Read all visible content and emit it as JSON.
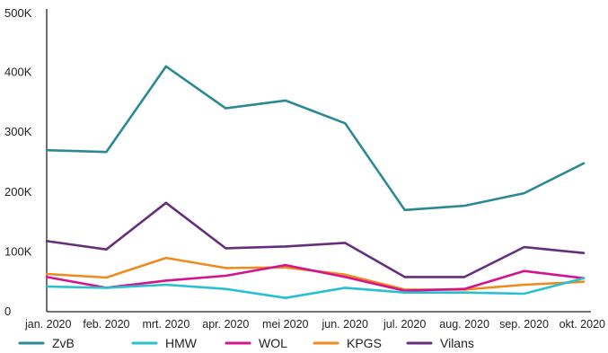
{
  "chart_data": {
    "type": "line",
    "title": "",
    "xlabel": "",
    "ylabel": "",
    "categories": [
      "jan. 2020",
      "feb. 2020",
      "mrt. 2020",
      "apr. 2020",
      "mei 2020",
      "jun. 2020",
      "jul. 2020",
      "aug. 2020",
      "sep. 2020",
      "okt. 2020"
    ],
    "ylim": [
      0,
      500000
    ],
    "y_ticks": [
      {
        "value": 0,
        "label": "0"
      },
      {
        "value": 100000,
        "label": "100K"
      },
      {
        "value": 200000,
        "label": "200K"
      },
      {
        "value": 300000,
        "label": "300K"
      },
      {
        "value": 400000,
        "label": "400K"
      },
      {
        "value": 500000,
        "label": "500K"
      }
    ],
    "grid": false,
    "legend_position": "bottom",
    "series": [
      {
        "name": "ZvB",
        "color": "#2a8a93",
        "values": [
          270000,
          267000,
          410000,
          340000,
          353000,
          315000,
          170000,
          177000,
          198000,
          248000
        ]
      },
      {
        "name": "HMW",
        "color": "#28c1cf",
        "values": [
          42000,
          40000,
          45000,
          38000,
          23000,
          40000,
          32000,
          32000,
          30000,
          56000
        ]
      },
      {
        "name": "WOL",
        "color": "#d4148e",
        "values": [
          58000,
          40000,
          52000,
          60000,
          78000,
          58000,
          35000,
          38000,
          68000,
          56000
        ]
      },
      {
        "name": "KPGS",
        "color": "#ef8a1d",
        "values": [
          63000,
          57000,
          90000,
          73000,
          74000,
          62000,
          37000,
          37000,
          45000,
          50000
        ]
      },
      {
        "name": "Vilans",
        "color": "#642f7b",
        "values": [
          118000,
          104000,
          182000,
          106000,
          109000,
          115000,
          58000,
          58000,
          108000,
          98000
        ]
      }
    ]
  }
}
